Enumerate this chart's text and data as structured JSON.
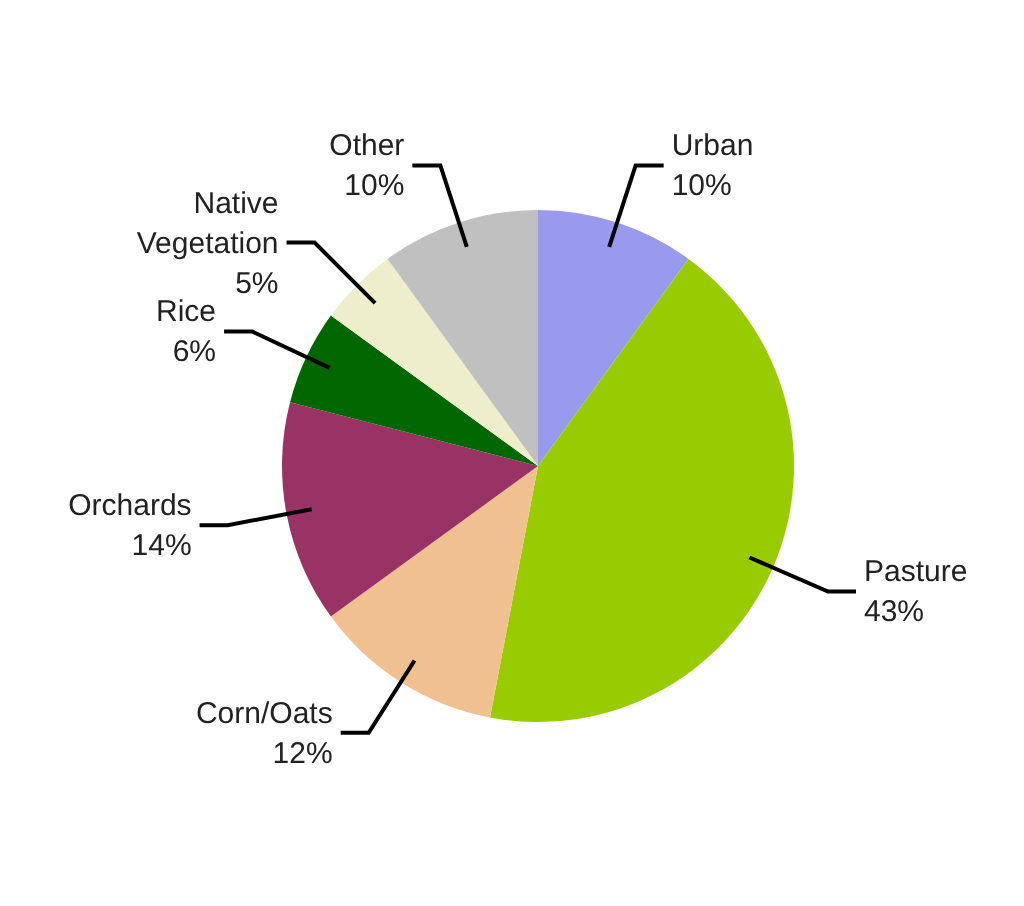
{
  "chart_data": {
    "type": "pie",
    "categories": [
      "Urban",
      "Pasture",
      "Corn/Oats",
      "Orchards",
      "Rice",
      "Native Vegetation",
      "Other"
    ],
    "values": [
      10,
      43,
      12,
      14,
      6,
      5,
      10
    ],
    "colors": [
      "#9999ee",
      "#99cc00",
      "#f0c090",
      "#993366",
      "#006600",
      "#eeeecc",
      "#c0c0c0"
    ],
    "value_labels": [
      "10%",
      "43%",
      "12%",
      "14%",
      "6%",
      "5%",
      "10%"
    ]
  }
}
